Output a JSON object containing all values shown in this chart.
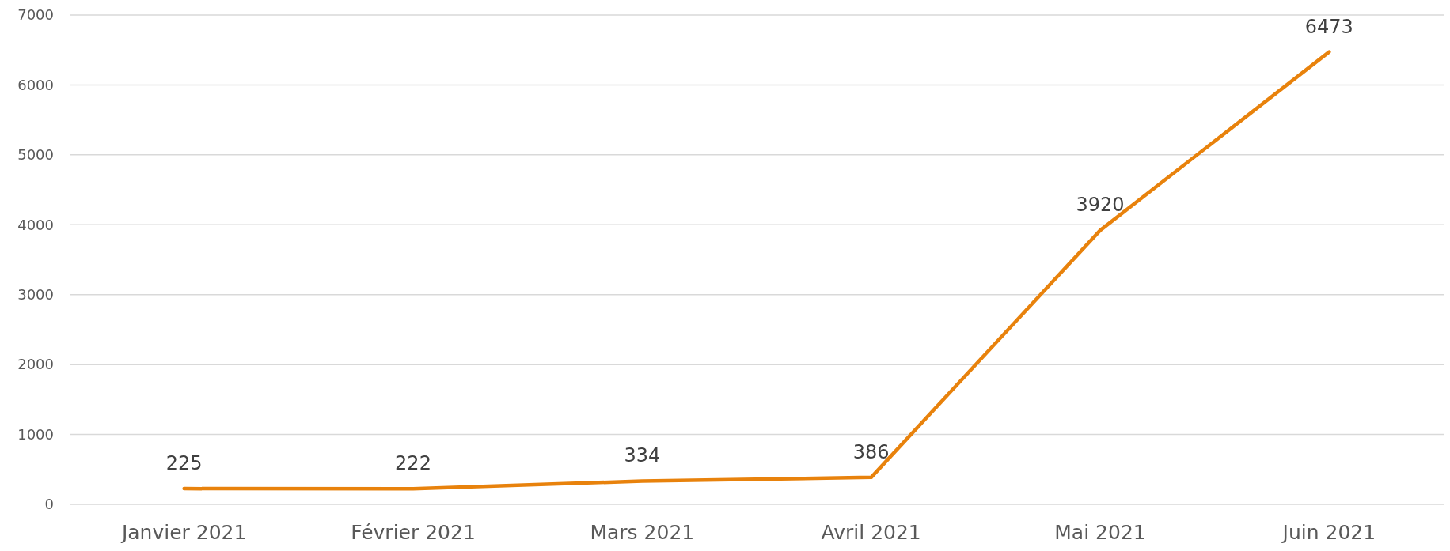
{
  "chart_data": {
    "type": "line",
    "categories": [
      "Janvier 2021",
      "Février 2021",
      "Mars 2021",
      "Avril 2021",
      "Mai 2021",
      "Juin 2021"
    ],
    "series": [
      {
        "color": "#e8820c",
        "values": [
          225,
          222,
          334,
          386,
          3920,
          6473
        ]
      }
    ],
    "ylim": [
      0,
      7000
    ],
    "yticks": [
      0,
      1000,
      2000,
      3000,
      4000,
      5000,
      6000,
      7000
    ],
    "grid": "y",
    "data_labels": true,
    "marker": "none",
    "line_style": "solid"
  }
}
